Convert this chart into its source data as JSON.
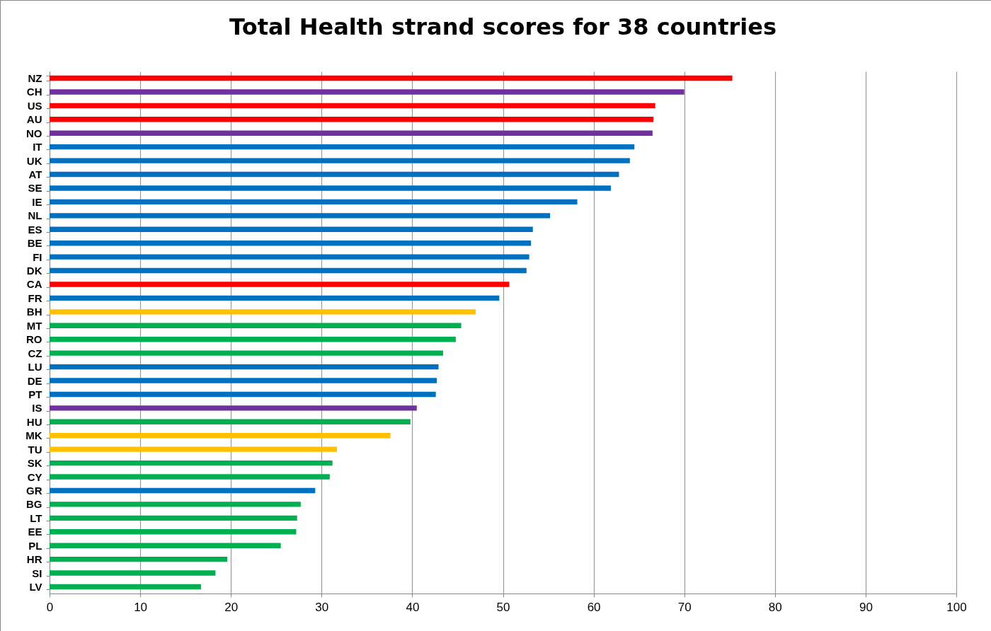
{
  "chart_data": {
    "type": "bar",
    "orientation": "horizontal",
    "title": "Total Health strand scores for 38 countries",
    "categories": [
      "NZ",
      "CH",
      "US",
      "AU",
      "NO",
      "IT",
      "UK",
      "AT",
      "SE",
      "IE",
      "NL",
      "ES",
      "BE",
      "FI",
      "DK",
      "CA",
      "FR",
      "BH",
      "MT",
      "RO",
      "CZ",
      "LU",
      "DE",
      "PT",
      "IS",
      "HU",
      "MK",
      "TU",
      "SK",
      "CY",
      "GR",
      "BG",
      "LT",
      "EE",
      "PL",
      "HR",
      "SI",
      "LV"
    ],
    "values": [
      75.3,
      70.0,
      66.8,
      66.6,
      66.5,
      64.5,
      64.0,
      62.8,
      61.9,
      58.2,
      55.2,
      53.3,
      53.1,
      52.9,
      52.6,
      50.7,
      49.6,
      47.0,
      45.4,
      44.8,
      43.4,
      42.9,
      42.7,
      42.6,
      40.5,
      39.8,
      37.6,
      31.7,
      31.2,
      30.9,
      29.3,
      27.7,
      27.3,
      27.2,
      25.5,
      19.6,
      18.3,
      16.7
    ],
    "colors": [
      "#ff0000",
      "#7030a0",
      "#ff0000",
      "#ff0000",
      "#7030a0",
      "#0070c0",
      "#0070c0",
      "#0070c0",
      "#0070c0",
      "#0070c0",
      "#0070c0",
      "#0070c0",
      "#0070c0",
      "#0070c0",
      "#0070c0",
      "#ff0000",
      "#0070c0",
      "#ffc000",
      "#00b050",
      "#00b050",
      "#00b050",
      "#0070c0",
      "#0070c0",
      "#0070c0",
      "#7030a0",
      "#00b050",
      "#ffc000",
      "#ffc000",
      "#00b050",
      "#00b050",
      "#0070c0",
      "#00b050",
      "#00b050",
      "#00b050",
      "#00b050",
      "#00b050",
      "#00b050",
      "#00b050"
    ],
    "xlim": [
      0,
      100
    ],
    "xticks": [
      0,
      10,
      20,
      30,
      40,
      50,
      60,
      70,
      80,
      90,
      100
    ],
    "grid": "x"
  }
}
